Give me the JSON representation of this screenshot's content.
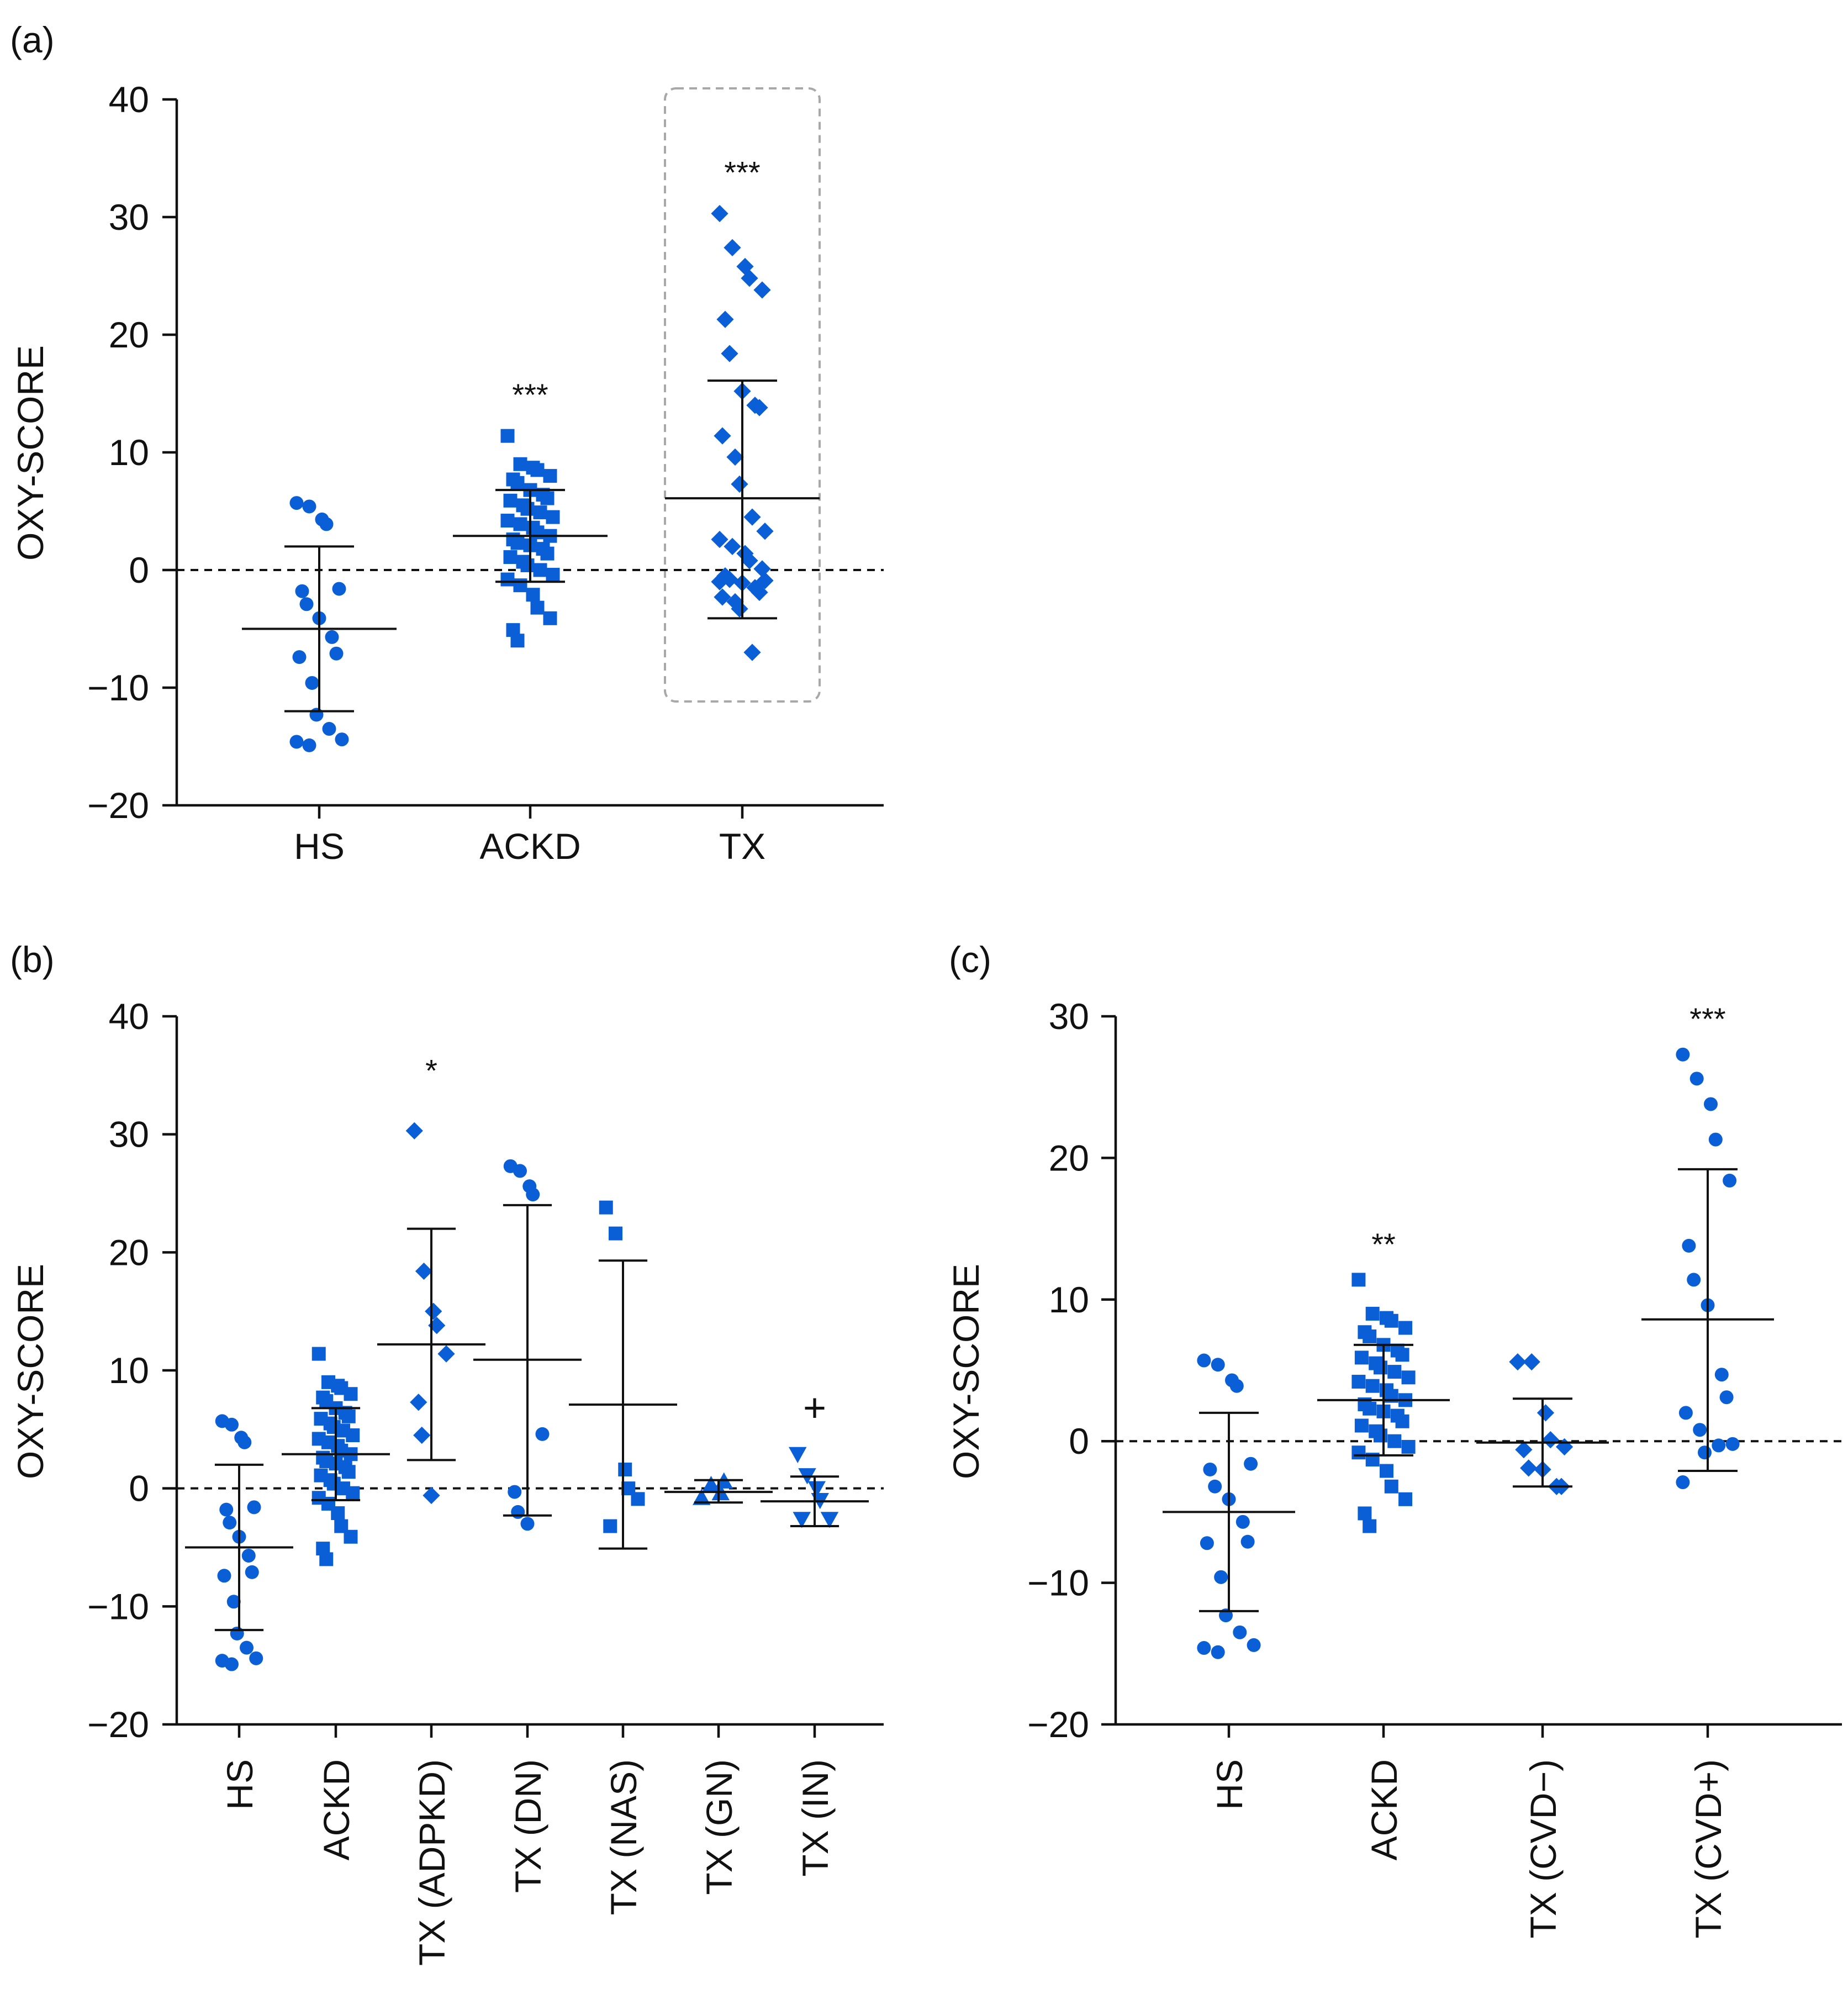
{
  "figure": {
    "panel_labels": [
      "(a)",
      "(b)",
      "(c)"
    ],
    "colors": {
      "marker": "#0a5fd6",
      "axis": "#111111",
      "highlight_box": "#a8a8a8"
    }
  },
  "chart_data": [
    {
      "type": "scatter",
      "panel": "(a)",
      "ylabel": "OXY-SCORE",
      "ylim": [
        -20,
        40
      ],
      "yticks": [
        -20,
        -10,
        0,
        10,
        20,
        30,
        40
      ],
      "ytick_labels": [
        "−20",
        "−10",
        "0",
        "10",
        "20",
        "30",
        "40"
      ],
      "reference_line": 0,
      "categories": [
        "HS",
        "ACKD",
        "TX"
      ],
      "highlight_group": "TX",
      "groups": [
        {
          "name": "HS",
          "marker": "circle",
          "mean": -5,
          "sd_low": -12,
          "sd_high": 2,
          "significance": "",
          "points": [
            5.7,
            5.4,
            4.3,
            3.9,
            -1.6,
            -1.8,
            -2.9,
            -4.1,
            -5.7,
            -7.1,
            -7.4,
            -9.6,
            -12.3,
            -13.5,
            -14.4,
            -14.6,
            -14.9
          ]
        },
        {
          "name": "ACKD",
          "marker": "square",
          "mean": 2.9,
          "sd_low": -1,
          "sd_high": 6.8,
          "significance": "***",
          "points": [
            11.4,
            9.0,
            8.7,
            8.5,
            8.0,
            7.7,
            7.4,
            6.8,
            6.4,
            6.1,
            5.9,
            5.5,
            5.2,
            4.9,
            4.5,
            4.2,
            3.9,
            3.6,
            3.2,
            2.9,
            2.6,
            2.3,
            2.1,
            1.8,
            1.4,
            1.1,
            0.7,
            0.4,
            0.0,
            -0.4,
            -0.8,
            -1.3,
            -2.1,
            -3.2,
            -4.1,
            -5.1,
            -6.0
          ]
        },
        {
          "name": "TX",
          "marker": "diamond",
          "mean": 6.1,
          "sd_low": -4.1,
          "sd_high": 16.1,
          "significance": "***",
          "points": [
            30.3,
            27.4,
            25.8,
            24.8,
            23.8,
            21.3,
            18.4,
            15.2,
            14.0,
            13.8,
            11.4,
            9.6,
            7.3,
            4.5,
            3.3,
            2.6,
            2.0,
            1.4,
            0.8,
            0.1,
            -0.5,
            -0.8,
            -1.1,
            -1.5,
            -1.9,
            -2.3,
            -2.7,
            -3.3,
            -7.0,
            -0.9,
            -1.0
          ]
        }
      ]
    },
    {
      "type": "scatter",
      "panel": "(b)",
      "ylabel": "OXY-SCORE",
      "ylim": [
        -20,
        40
      ],
      "yticks": [
        -20,
        -10,
        0,
        10,
        20,
        30,
        40
      ],
      "ytick_labels": [
        "−20",
        "−10",
        "0",
        "10",
        "20",
        "30",
        "40"
      ],
      "reference_line": 0,
      "categories": [
        "HS",
        "ACKD",
        "TX (ADPKD)",
        "TX (DN)",
        "TX (NAS)",
        "TX (GN)",
        "TX (IN)"
      ],
      "groups": [
        {
          "name": "HS",
          "marker": "circle",
          "mean": -5,
          "sd_low": -12,
          "sd_high": 2,
          "significance": "",
          "points": [
            5.7,
            5.4,
            4.3,
            3.9,
            -1.6,
            -1.8,
            -2.9,
            -4.1,
            -5.7,
            -7.1,
            -7.4,
            -9.6,
            -12.3,
            -13.5,
            -14.4,
            -14.6,
            -14.9
          ]
        },
        {
          "name": "ACKD",
          "marker": "square",
          "mean": 2.9,
          "sd_low": -1,
          "sd_high": 6.8,
          "significance": "",
          "points": [
            11.4,
            9.0,
            8.7,
            8.5,
            8.0,
            7.7,
            7.4,
            6.8,
            6.4,
            6.1,
            5.9,
            5.5,
            5.2,
            4.9,
            4.5,
            4.2,
            3.9,
            3.6,
            3.2,
            2.9,
            2.6,
            2.3,
            2.1,
            1.8,
            1.4,
            1.1,
            0.7,
            0.4,
            0.0,
            -0.4,
            -0.8,
            -1.3,
            -2.1,
            -3.2,
            -4.1,
            -5.1,
            -6.0
          ]
        },
        {
          "name": "TX (ADPKD)",
          "marker": "diamond",
          "mean": 12.2,
          "sd_low": 2.4,
          "sd_high": 22,
          "significance": "*",
          "points": [
            30.3,
            18.4,
            15.0,
            13.8,
            11.4,
            7.3,
            4.5,
            -0.6
          ]
        },
        {
          "name": "TX (DN)",
          "marker": "circle",
          "mean": 10.9,
          "sd_low": -2.3,
          "sd_high": 24,
          "significance": "",
          "points": [
            27.3,
            26.9,
            25.6,
            24.9,
            4.6,
            -0.3,
            -2.0,
            -3.0
          ]
        },
        {
          "name": "TX (NAS)",
          "marker": "square",
          "mean": 7.1,
          "sd_low": -5.1,
          "sd_high": 19.3,
          "significance": "",
          "points": [
            23.8,
            21.6,
            1.6,
            0.0,
            -0.9,
            -3.2
          ]
        },
        {
          "name": "TX (GN)",
          "marker": "triangle-up",
          "mean": -0.3,
          "sd_low": -1.2,
          "sd_high": 0.7,
          "significance": "",
          "points": [
            -0.8,
            0.3,
            -0.4,
            0.6
          ]
        },
        {
          "name": "TX (IN)",
          "marker": "triangle-down",
          "mean": -1.1,
          "sd_low": -3.2,
          "sd_high": 1,
          "significance": "+",
          "points": [
            2.9,
            1.1,
            0.0,
            -1.0,
            -2.6,
            -2.6
          ]
        }
      ]
    },
    {
      "type": "scatter",
      "panel": "(c)",
      "ylabel": "OXY-SCORE",
      "ylim": [
        -20,
        30
      ],
      "yticks": [
        -20,
        -10,
        0,
        10,
        20,
        30
      ],
      "ytick_labels": [
        "−20",
        "−10",
        "0",
        "10",
        "20",
        "30"
      ],
      "reference_line": 0,
      "categories": [
        "HS",
        "ACKD",
        "TX (CVD−)",
        "TX (CVD+)"
      ],
      "groups": [
        {
          "name": "HS",
          "marker": "circle",
          "mean": -5,
          "sd_low": -12,
          "sd_high": 2,
          "significance": "",
          "points": [
            5.7,
            5.4,
            4.3,
            3.9,
            -1.6,
            -2.0,
            -3.2,
            -4.1,
            -5.7,
            -7.1,
            -7.2,
            -9.6,
            -12.3,
            -13.5,
            -14.4,
            -14.6,
            -14.9
          ]
        },
        {
          "name": "ACKD",
          "marker": "square",
          "mean": 2.9,
          "sd_low": -1,
          "sd_high": 6.8,
          "significance": "**",
          "points": [
            11.4,
            9.0,
            8.7,
            8.5,
            8.0,
            7.7,
            7.4,
            6.8,
            6.4,
            6.1,
            5.9,
            5.5,
            5.2,
            4.9,
            4.5,
            4.2,
            3.9,
            3.6,
            3.2,
            2.9,
            2.6,
            2.3,
            2.1,
            1.8,
            1.4,
            1.1,
            0.7,
            0.4,
            0.0,
            -0.4,
            -0.8,
            -1.3,
            -2.1,
            -3.2,
            -4.1,
            -5.1,
            -6.0
          ]
        },
        {
          "name": "TX (CVD−)",
          "marker": "diamond",
          "mean": -0.1,
          "sd_low": -3.2,
          "sd_high": 3,
          "significance": "",
          "points": [
            5.6,
            5.6,
            2.0,
            0.1,
            -0.4,
            -0.6,
            -1.9,
            -2.0,
            -3.2,
            -3.2
          ]
        },
        {
          "name": "TX (CVD+)",
          "marker": "circle",
          "mean": 8.6,
          "sd_low": -2.1,
          "sd_high": 19.2,
          "significance": "***",
          "points": [
            27.3,
            25.6,
            23.8,
            21.3,
            18.4,
            13.8,
            11.4,
            9.6,
            4.7,
            3.1,
            2.0,
            0.8,
            -0.8,
            -0.3,
            -0.2,
            -2.9
          ]
        }
      ]
    }
  ]
}
